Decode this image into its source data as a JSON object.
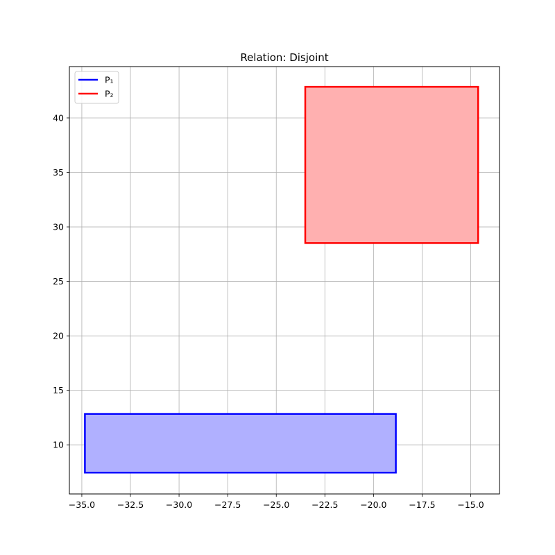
{
  "chart_data": {
    "type": "area",
    "title": "Relation: Disjoint",
    "xlabel": "",
    "ylabel": "",
    "xlim": [
      -35.64,
      -13.52
    ],
    "ylim": [
      5.49,
      44.71
    ],
    "xticks": [
      -35.0,
      -32.5,
      -30.0,
      -27.5,
      -25.0,
      -22.5,
      -20.0,
      -17.5,
      -15.0
    ],
    "xtick_labels": [
      "−35.0",
      "−32.5",
      "−30.0",
      "−27.5",
      "−25.0",
      "−22.5",
      "−20.0",
      "−17.5",
      "−15.0"
    ],
    "yticks": [
      10,
      15,
      20,
      25,
      30,
      35,
      40
    ],
    "ytick_labels": [
      "10",
      "15",
      "20",
      "25",
      "30",
      "35",
      "40"
    ],
    "grid": true,
    "legend_position": "top-left",
    "series": [
      {
        "name": "P₁",
        "color": "#0000ff",
        "fill": "#b0b0ff",
        "polygon": [
          [
            -34.84,
            7.45
          ],
          [
            -18.85,
            7.45
          ],
          [
            -18.85,
            12.84
          ],
          [
            -34.84,
            12.84
          ]
        ]
      },
      {
        "name": "P₂",
        "color": "#ff0000",
        "fill": "#ffb0b0",
        "polygon": [
          [
            -23.51,
            28.51
          ],
          [
            -14.62,
            28.51
          ],
          [
            -14.62,
            42.86
          ],
          [
            -23.51,
            42.86
          ]
        ]
      }
    ]
  }
}
